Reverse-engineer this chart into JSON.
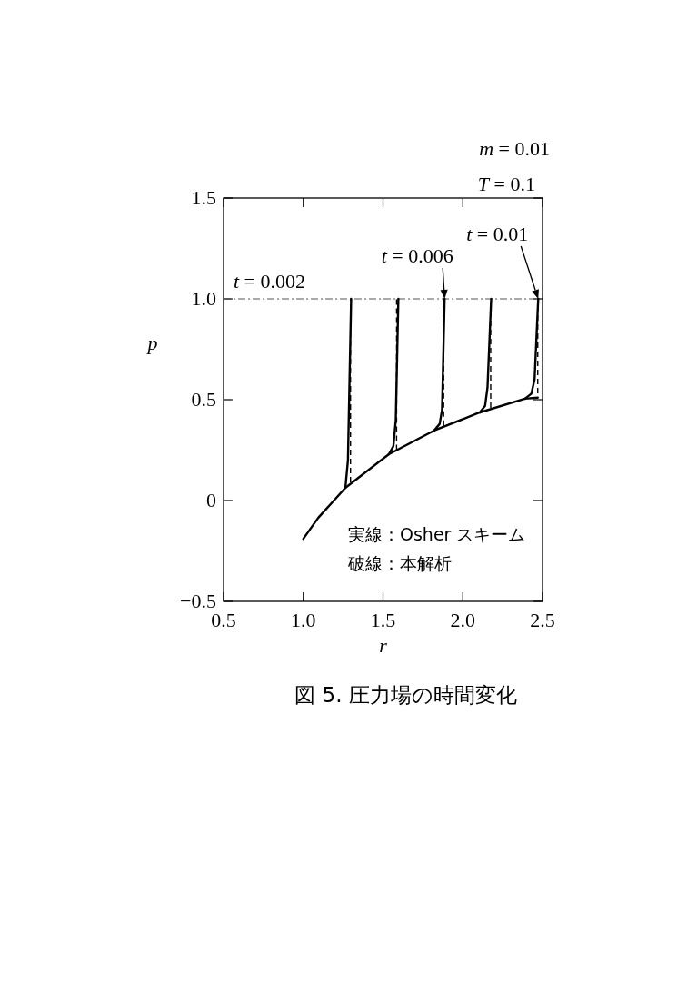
{
  "chart_data": {
    "type": "line",
    "title": "図 5. 圧力場の時間変化",
    "xlabel": "r",
    "ylabel": "p",
    "xlim": [
      0.5,
      2.5
    ],
    "ylim": [
      -0.5,
      1.5
    ],
    "xticks": [
      0.5,
      {
        "value": 1,
        "label": "1.0"
      },
      1.5,
      {
        "value": 2,
        "label": "2.0"
      },
      2.5
    ],
    "yticks": [
      {
        "value": -0.5,
        "label": "−0.5"
      },
      0,
      0.5,
      {
        "value": 1,
        "label": "1.0"
      },
      1.5
    ],
    "grid": false,
    "marker": "none",
    "ref_lines": [
      {
        "axis": "y",
        "value": 1,
        "line_style": "dashdot",
        "color": "#555555"
      }
    ],
    "series": [
      {
        "color": "#000000",
        "line_style": "solid",
        "x": [
          1.0,
          1.093,
          1.264,
          1.537,
          1.82,
          2.107,
          2.39,
          2.47
        ],
        "values": [
          -0.19,
          -0.086,
          0.063,
          0.23,
          0.347,
          0.437,
          0.505,
          0.51
        ]
      },
      {
        "color": "#000000",
        "line_style": "solid",
        "x": [
          1.264,
          1.28,
          1.29,
          1.3
        ],
        "values": [
          0.063,
          0.2,
          0.6,
          1.0
        ]
      },
      {
        "color": "#000000",
        "line_style": "solid",
        "x": [
          1.537,
          1.565,
          1.58,
          1.596
        ],
        "values": [
          0.23,
          0.27,
          0.4,
          1.0
        ]
      },
      {
        "color": "#000000",
        "line_style": "solid",
        "x": [
          1.82,
          1.855,
          1.87,
          1.886
        ],
        "values": [
          0.347,
          0.38,
          0.45,
          1.0
        ]
      },
      {
        "color": "#000000",
        "line_style": "solid",
        "x": [
          2.107,
          2.14,
          2.155,
          2.178
        ],
        "values": [
          0.437,
          0.47,
          0.56,
          1.0
        ]
      },
      {
        "color": "#000000",
        "line_style": "solid",
        "x": [
          2.39,
          2.43,
          2.45,
          2.473
        ],
        "values": [
          0.505,
          0.53,
          0.6,
          1.0
        ]
      },
      {
        "color": "#000000",
        "line_style": "dashed",
        "x": [
          1.296,
          1.296
        ],
        "values": [
          0.09,
          1.0
        ]
      },
      {
        "color": "#000000",
        "line_style": "dashed",
        "x": [
          1.585,
          1.585
        ],
        "values": [
          0.25,
          1.0
        ]
      },
      {
        "color": "#000000",
        "line_style": "dashed",
        "x": [
          1.88,
          1.88
        ],
        "values": [
          0.37,
          1.0
        ]
      },
      {
        "color": "#000000",
        "line_style": "dashed",
        "x": [
          2.175,
          2.175
        ],
        "values": [
          0.46,
          1.0
        ]
      },
      {
        "color": "#000000",
        "line_style": "dashed",
        "x": [
          2.44,
          2.47,
          2.47
        ],
        "values": [
          0.51,
          0.51,
          1.0
        ]
      }
    ],
    "annotations": [
      "m = 0.01",
      "T = 0.1",
      {
        "text": "t = 0.002",
        "x": 1.3,
        "y": 1.0
      },
      {
        "text": "t = 0.006",
        "x": 1.886,
        "y": 1.0
      },
      {
        "text": "t = 0.01",
        "x": 2.473,
        "y": 1.0
      },
      "実線：Osher スキーム",
      "破線：本解析"
    ]
  }
}
